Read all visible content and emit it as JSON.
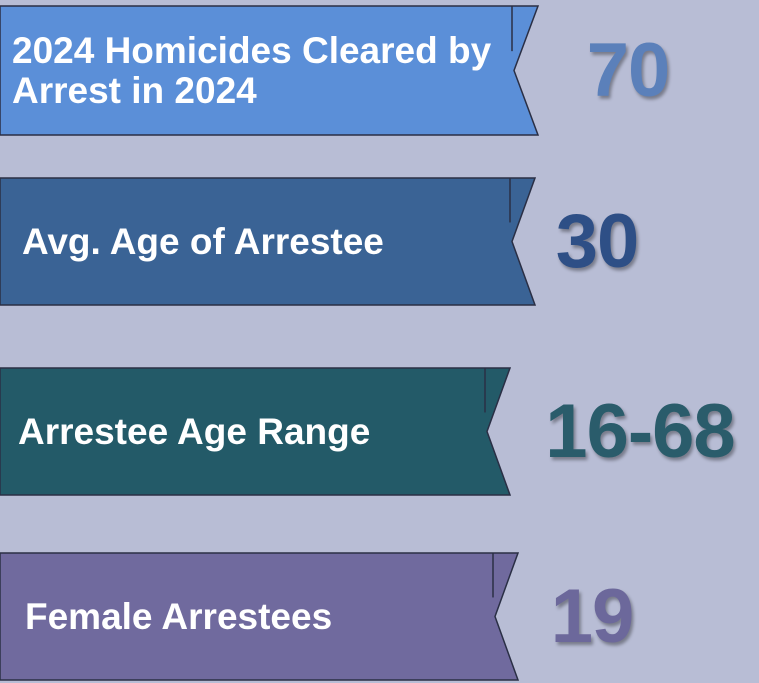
{
  "items": [
    {
      "label": "2024 Homicides Cleared by Arrest in 2024",
      "value": 70
    },
    {
      "label": "Avg. Age of Arrestee",
      "value": 30
    },
    {
      "label": "Arrestee Age Range",
      "value": "16-68"
    },
    {
      "label": "Female Arrestees",
      "value": 19
    }
  ]
}
